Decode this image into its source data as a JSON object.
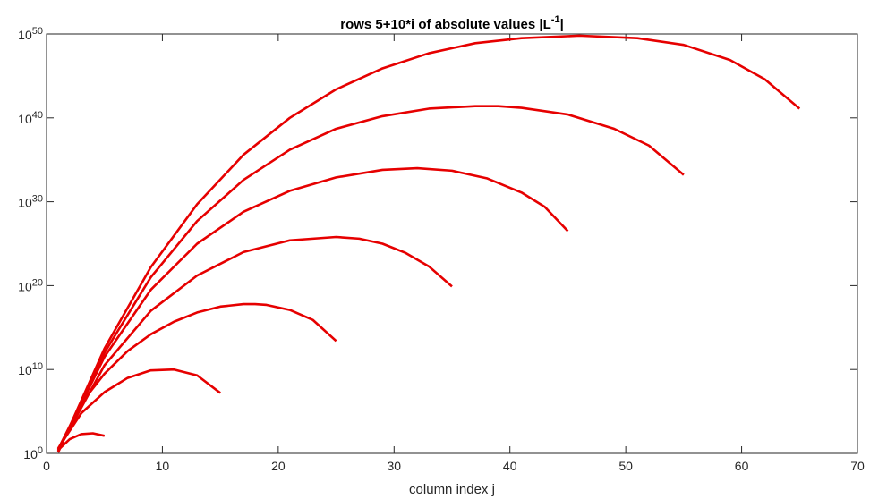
{
  "chart_data": {
    "type": "line",
    "title": "rows 5+10*i of absolute values |L",
    "title_sup": "-1",
    "title_suffix": "|",
    "xlabel": "column index j",
    "ylabel": "",
    "xlim": [
      0,
      70
    ],
    "ylim_log10": [
      0,
      50
    ],
    "y_scale": "log",
    "x_ticks": [
      0,
      10,
      20,
      30,
      40,
      50,
      60,
      70
    ],
    "y_ticks_exp": [
      0,
      10,
      20,
      30,
      40,
      50
    ],
    "y_tick_base": "10",
    "grid": false,
    "legend": "none",
    "line_color": "#e60000",
    "series": [
      {
        "x": [
          1,
          2,
          3,
          4,
          5
        ],
        "log10_y": [
          0.4,
          1.7,
          2.3,
          2.4,
          2.1
        ]
      },
      {
        "x": [
          1,
          3,
          5,
          7,
          9,
          11,
          13,
          15
        ],
        "log10_y": [
          0.6,
          4.8,
          7.3,
          9.0,
          9.9,
          10.0,
          9.3,
          7.2
        ]
      },
      {
        "x": [
          1,
          3,
          5,
          7,
          9,
          11,
          13,
          15,
          17,
          18,
          19,
          21,
          23,
          25
        ],
        "log10_y": [
          0.5,
          6.0,
          9.5,
          12.2,
          14.2,
          15.7,
          16.8,
          17.5,
          17.8,
          17.8,
          17.7,
          17.1,
          15.9,
          13.4
        ]
      },
      {
        "x": [
          1,
          5,
          9,
          13,
          17,
          21,
          25,
          27,
          29,
          31,
          33,
          35
        ],
        "log10_y": [
          0.4,
          10.5,
          17.0,
          21.2,
          24.0,
          25.4,
          25.8,
          25.6,
          25.0,
          23.9,
          22.3,
          19.9
        ]
      },
      {
        "x": [
          1,
          5,
          9,
          13,
          17,
          21,
          25,
          29,
          32,
          35,
          38,
          41,
          43,
          45
        ],
        "log10_y": [
          0.3,
          11.5,
          19.5,
          25.0,
          28.8,
          31.3,
          32.9,
          33.8,
          34.0,
          33.7,
          32.8,
          31.1,
          29.4,
          26.5
        ]
      },
      {
        "x": [
          1,
          5,
          9,
          13,
          17,
          21,
          25,
          29,
          33,
          37,
          39,
          41,
          45,
          49,
          52,
          55
        ],
        "log10_y": [
          0.2,
          12.0,
          21.0,
          27.7,
          32.6,
          36.2,
          38.7,
          40.2,
          41.1,
          41.4,
          41.4,
          41.2,
          40.4,
          38.7,
          36.7,
          33.2
        ]
      },
      {
        "x": [
          1,
          5,
          9,
          13,
          17,
          21,
          25,
          29,
          33,
          37,
          41,
          46,
          51,
          55,
          59,
          62,
          65
        ],
        "log10_y": [
          0.1,
          12.5,
          22.2,
          29.7,
          35.6,
          40.0,
          43.4,
          45.9,
          47.7,
          48.9,
          49.5,
          49.8,
          49.5,
          48.7,
          46.9,
          44.6,
          41.1
        ]
      }
    ]
  }
}
